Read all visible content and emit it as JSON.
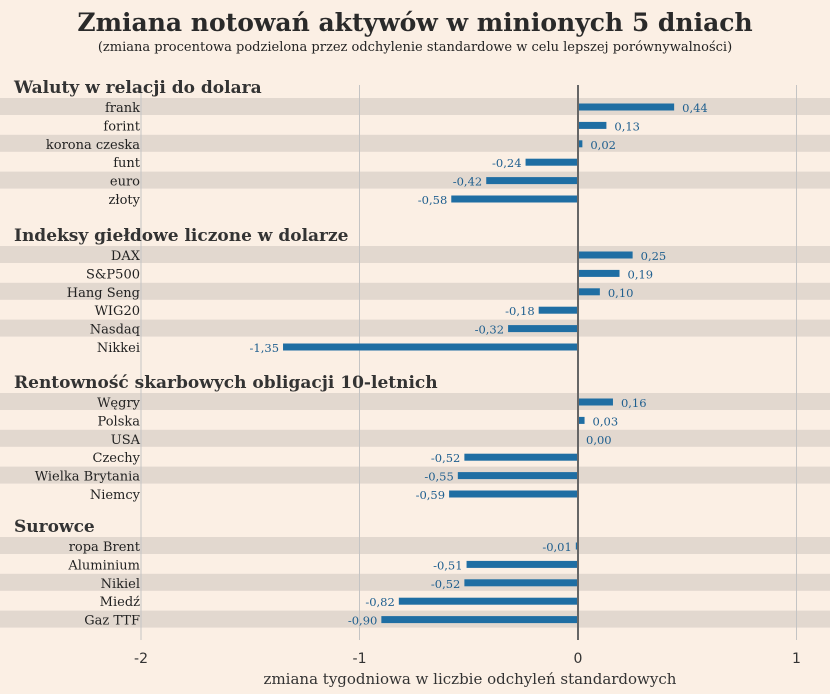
{
  "title": "Zmiana notowań aktywów w minionych 5 dniach",
  "subtitle": "(zmiana procentowa podzielona przez odchylenie standardowe w celu lepszej porównywalności)",
  "colors": {
    "background": "#fbefe4",
    "stripe": "#e2d8cf",
    "bar": "#1f6ea3",
    "zero_line": "#666666",
    "grid": "#c4c4c4"
  },
  "chart_data": {
    "type": "bar",
    "orientation": "horizontal",
    "xlabel": "zmiana tygodniowa w liczbie odchyleń standardowych",
    "xlim": [
      -2,
      1
    ],
    "xticks": [
      "-2",
      "-1",
      "0",
      "1"
    ],
    "grid": true,
    "groups": [
      {
        "name": "Waluty w relacji do dolara",
        "categories": [
          "frank",
          "forint",
          "korona czeska",
          "funt",
          "euro",
          "złoty"
        ],
        "values": [
          0.44,
          0.13,
          0.02,
          -0.24,
          -0.42,
          -0.58
        ],
        "labels": [
          "0,44",
          "0,13",
          "0,02",
          "-0,24",
          "-0,42",
          "-0,58"
        ]
      },
      {
        "name": "Indeksy giełdowe liczone w dolarze",
        "categories": [
          "DAX",
          "S&P500",
          "Hang Seng",
          "WIG20",
          "Nasdaq",
          "Nikkei"
        ],
        "values": [
          0.25,
          0.19,
          0.1,
          -0.18,
          -0.32,
          -1.35
        ],
        "labels": [
          "0,25",
          "0,19",
          "0,10",
          "-0,18",
          "-0,32",
          "-1,35"
        ]
      },
      {
        "name": "Rentowność skarbowych obligacji 10-letnich",
        "categories": [
          "Węgry",
          "Polska",
          "USA",
          "Czechy",
          "Wielka Brytania",
          "Niemcy"
        ],
        "values": [
          0.16,
          0.03,
          0.0,
          -0.52,
          -0.55,
          -0.59
        ],
        "labels": [
          "0,16",
          "0,03",
          "0,00",
          "-0,52",
          "-0,55",
          "-0,59"
        ]
      },
      {
        "name": "Surowce",
        "categories": [
          "ropa Brent",
          "Aluminium",
          "Nikiel",
          "Miedź",
          "Gaz TTF"
        ],
        "values": [
          -0.01,
          -0.51,
          -0.52,
          -0.82,
          -0.9
        ],
        "labels": [
          "-0,01",
          "-0,51",
          "-0,52",
          "-0,82",
          "-0,90"
        ]
      }
    ]
  }
}
